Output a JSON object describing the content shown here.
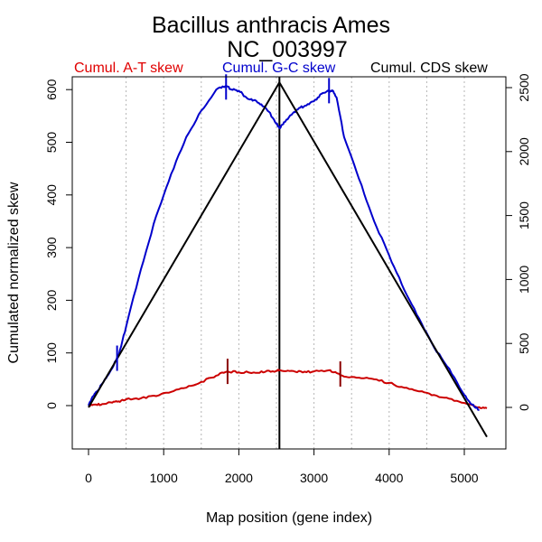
{
  "chart_data": {
    "type": "line",
    "title": "Bacillus anthracis Ames",
    "subtitle": "NC_003997",
    "xlabel": "Map position (gene index)",
    "ylabel": "Cumulated normalized skew",
    "xlim": [
      0,
      5300
    ],
    "ylim": [
      0,
      600
    ],
    "ylim_right": [
      0,
      2500
    ],
    "x_ticks": [
      0,
      1000,
      2000,
      3000,
      4000,
      5000
    ],
    "y_ticks": [
      0,
      100,
      200,
      300,
      400,
      500,
      600
    ],
    "y_ticks_right": [
      0,
      500,
      1000,
      1500,
      2000,
      2500
    ],
    "grid": "vertical dotted lines every 500",
    "legend": [
      {
        "label": "Cumul. A-T skew",
        "color": "#e00000"
      },
      {
        "label": "Cumul. G-C skew",
        "color": "#0000cc"
      },
      {
        "label": "Cumul. CDS skew",
        "color": "#000000"
      }
    ],
    "series": [
      {
        "name": "Cumul. A-T skew",
        "axis": "left",
        "color": "#cc0000",
        "x": [
          0,
          100,
          200,
          300,
          400,
          500,
          700,
          900,
          1100,
          1300,
          1500,
          1700,
          1850,
          2000,
          2200,
          2350,
          2500,
          2550,
          2700,
          2850,
          3000,
          3200,
          3300,
          3400,
          3600,
          3800,
          4000,
          4200,
          4400,
          4600,
          4800,
          5000,
          5200,
          5300
        ],
        "y": [
          0,
          2,
          3,
          6,
          8,
          12,
          14,
          18,
          26,
          34,
          45,
          57,
          65,
          63,
          63,
          64,
          66,
          67,
          66,
          63,
          65,
          67,
          62,
          55,
          53,
          50,
          43,
          34,
          27,
          20,
          13,
          5,
          -3,
          -5
        ]
      },
      {
        "name": "Cumul. G-C skew",
        "axis": "left",
        "color": "#0000cc",
        "x": [
          0,
          60,
          120,
          200,
          300,
          400,
          500,
          700,
          900,
          1100,
          1300,
          1500,
          1700,
          1800,
          1850,
          1900,
          2000,
          2100,
          2200,
          2300,
          2400,
          2500,
          2550,
          2600,
          2700,
          2800,
          2900,
          3000,
          3100,
          3200,
          3250,
          3300,
          3400,
          3600,
          3800,
          4000,
          4200,
          4400,
          4600,
          4800,
          5000,
          5100,
          5200
        ],
        "y": [
          0,
          18,
          28,
          45,
          68,
          95,
          150,
          260,
          360,
          440,
          510,
          560,
          600,
          605,
          606,
          600,
          598,
          585,
          580,
          572,
          558,
          535,
          527,
          538,
          552,
          565,
          570,
          578,
          592,
          597,
          598,
          585,
          510,
          430,
          350,
          285,
          220,
          165,
          110,
          70,
          20,
          2,
          -8
        ]
      },
      {
        "name": "Cumul. CDS skew",
        "axis": "right",
        "color": "#000000",
        "x": [
          0,
          2540,
          5300
        ],
        "y": [
          0,
          2540,
          -230
        ]
      }
    ],
    "markers": [
      {
        "series": "Cumul. G-C skew",
        "x": 380,
        "y": 90
      },
      {
        "series": "Cumul. G-C skew",
        "x": 1830,
        "y": 605
      },
      {
        "series": "Cumul. G-C skew",
        "x": 3200,
        "y": 598
      },
      {
        "series": "Cumul. A-T skew",
        "x": 1850,
        "y": 65
      },
      {
        "series": "Cumul. A-T skew",
        "x": 3350,
        "y": 60
      }
    ],
    "vertical_line_x": 2540
  }
}
